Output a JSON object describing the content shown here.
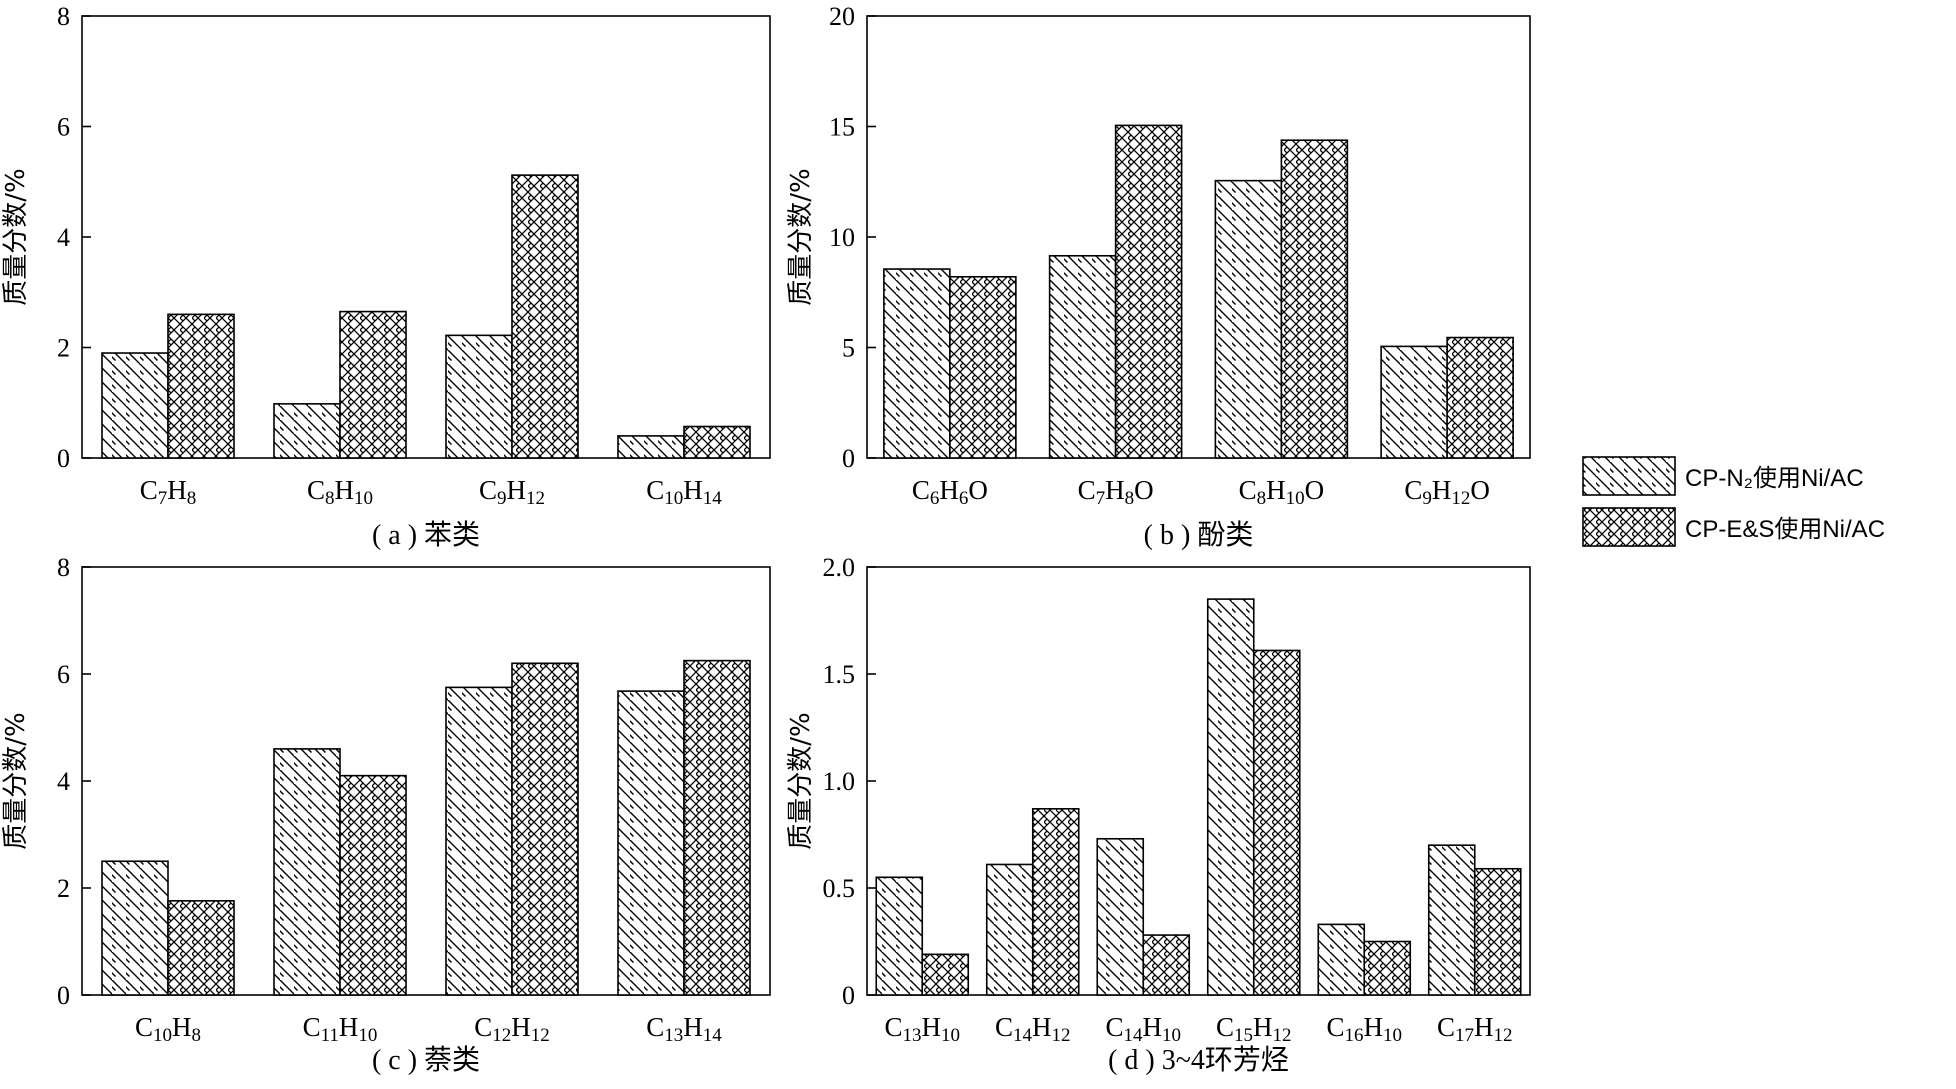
{
  "legend": {
    "items": [
      {
        "label": "CP-N₂使用Ni/AC",
        "pattern": "hatch"
      },
      {
        "label": "CP-E&S使用Ni/AC",
        "pattern": "crosshatch"
      }
    ]
  },
  "chart_data": [
    {
      "type": "bar",
      "caption": "( a ) 苯类",
      "ylabel": "质量分数/%",
      "ylim": [
        0,
        8
      ],
      "yticks": [
        "0",
        "2",
        "4",
        "6",
        "8"
      ],
      "ytick_values": [
        0,
        2,
        4,
        6,
        8
      ],
      "categories": [
        [
          [
            "C",
            ""
          ],
          [
            "7",
            "sub"
          ],
          [
            "H",
            ""
          ],
          [
            "8",
            "sub"
          ]
        ],
        [
          [
            "C",
            ""
          ],
          [
            "8",
            "sub"
          ],
          [
            "H",
            ""
          ],
          [
            "10",
            "sub"
          ]
        ],
        [
          [
            "C",
            ""
          ],
          [
            "9",
            "sub"
          ],
          [
            "H",
            ""
          ],
          [
            "12",
            "sub"
          ]
        ],
        [
          [
            "C",
            ""
          ],
          [
            "10",
            "sub"
          ],
          [
            "H",
            ""
          ],
          [
            "14",
            "sub"
          ]
        ]
      ],
      "series": [
        {
          "name": "CP-N₂使用Ni/AC",
          "values": [
            1.9,
            0.98,
            2.22,
            0.4
          ]
        },
        {
          "name": "CP-E&S使用Ni/AC",
          "values": [
            2.6,
            2.65,
            5.12,
            0.57
          ]
        }
      ]
    },
    {
      "type": "bar",
      "caption": "( b ) 酚类",
      "ylabel": "质量分数/%",
      "ylim": [
        0,
        20
      ],
      "yticks": [
        "0",
        "5",
        "10",
        "15",
        "20"
      ],
      "ytick_values": [
        0,
        5,
        10,
        15,
        20
      ],
      "categories": [
        [
          [
            "C",
            ""
          ],
          [
            "6",
            "sub"
          ],
          [
            "H",
            ""
          ],
          [
            "6",
            "sub"
          ],
          [
            "O",
            ""
          ]
        ],
        [
          [
            "C",
            ""
          ],
          [
            "7",
            "sub"
          ],
          [
            "H",
            ""
          ],
          [
            "8",
            "sub"
          ],
          [
            "O",
            ""
          ]
        ],
        [
          [
            "C",
            ""
          ],
          [
            "8",
            "sub"
          ],
          [
            "H",
            ""
          ],
          [
            "10",
            "sub"
          ],
          [
            "O",
            ""
          ]
        ],
        [
          [
            "C",
            ""
          ],
          [
            "9",
            "sub"
          ],
          [
            "H",
            ""
          ],
          [
            "12",
            "sub"
          ],
          [
            "O",
            ""
          ]
        ]
      ],
      "series": [
        {
          "name": "CP-N₂使用Ni/AC",
          "values": [
            8.55,
            9.15,
            12.55,
            5.05
          ]
        },
        {
          "name": "CP-E&S使用Ni/AC",
          "values": [
            8.2,
            15.05,
            14.38,
            5.45
          ]
        }
      ]
    },
    {
      "type": "bar",
      "caption": "( c ) 萘类",
      "ylabel": "质量分数/%",
      "ylim": [
        0,
        8
      ],
      "yticks": [
        "0",
        "2",
        "4",
        "6",
        "8"
      ],
      "ytick_values": [
        0,
        2,
        4,
        6,
        8
      ],
      "categories": [
        [
          [
            "C",
            ""
          ],
          [
            "10",
            "sub"
          ],
          [
            "H",
            ""
          ],
          [
            "8",
            "sub"
          ]
        ],
        [
          [
            "C",
            ""
          ],
          [
            "11",
            "sub"
          ],
          [
            "H",
            ""
          ],
          [
            "10",
            "sub"
          ]
        ],
        [
          [
            "C",
            ""
          ],
          [
            "12",
            "sub"
          ],
          [
            "H",
            ""
          ],
          [
            "12",
            "sub"
          ]
        ],
        [
          [
            "C",
            ""
          ],
          [
            "13",
            "sub"
          ],
          [
            "H",
            ""
          ],
          [
            "14",
            "sub"
          ]
        ]
      ],
      "series": [
        {
          "name": "CP-N₂使用Ni/AC",
          "values": [
            2.5,
            4.6,
            5.75,
            5.68
          ]
        },
        {
          "name": "CP-E&S使用Ni/AC",
          "values": [
            1.76,
            4.1,
            6.2,
            6.25
          ]
        }
      ]
    },
    {
      "type": "bar",
      "caption": "( d ) 3~4环芳烃",
      "ylabel": "质量分数/%",
      "ylim": [
        0,
        2.0
      ],
      "yticks": [
        "0",
        "0.5",
        "1.0",
        "1.5",
        "2.0"
      ],
      "ytick_values": [
        0,
        0.5,
        1.0,
        1.5,
        2.0
      ],
      "categories": [
        [
          [
            "C",
            ""
          ],
          [
            "13",
            "sub"
          ],
          [
            "H",
            ""
          ],
          [
            "10",
            "sub"
          ]
        ],
        [
          [
            "C",
            ""
          ],
          [
            "14",
            "sub"
          ],
          [
            "H",
            ""
          ],
          [
            "12",
            "sub"
          ]
        ],
        [
          [
            "C",
            ""
          ],
          [
            "14",
            "sub"
          ],
          [
            "H",
            ""
          ],
          [
            "10",
            "sub"
          ]
        ],
        [
          [
            "C",
            ""
          ],
          [
            "15",
            "sub"
          ],
          [
            "H",
            ""
          ],
          [
            "12",
            "sub"
          ]
        ],
        [
          [
            "C",
            ""
          ],
          [
            "16",
            "sub"
          ],
          [
            "H",
            ""
          ],
          [
            "10",
            "sub"
          ]
        ],
        [
          [
            "C",
            ""
          ],
          [
            "17",
            "sub"
          ],
          [
            "H",
            ""
          ],
          [
            "12",
            "sub"
          ]
        ]
      ],
      "series": [
        {
          "name": "CP-N₂使用Ni/AC",
          "values": [
            0.55,
            0.61,
            0.73,
            1.85,
            0.33,
            0.7
          ]
        },
        {
          "name": "CP-E&S使用Ni/AC",
          "values": [
            0.19,
            0.87,
            0.28,
            1.61,
            0.25,
            0.59
          ]
        }
      ]
    }
  ]
}
